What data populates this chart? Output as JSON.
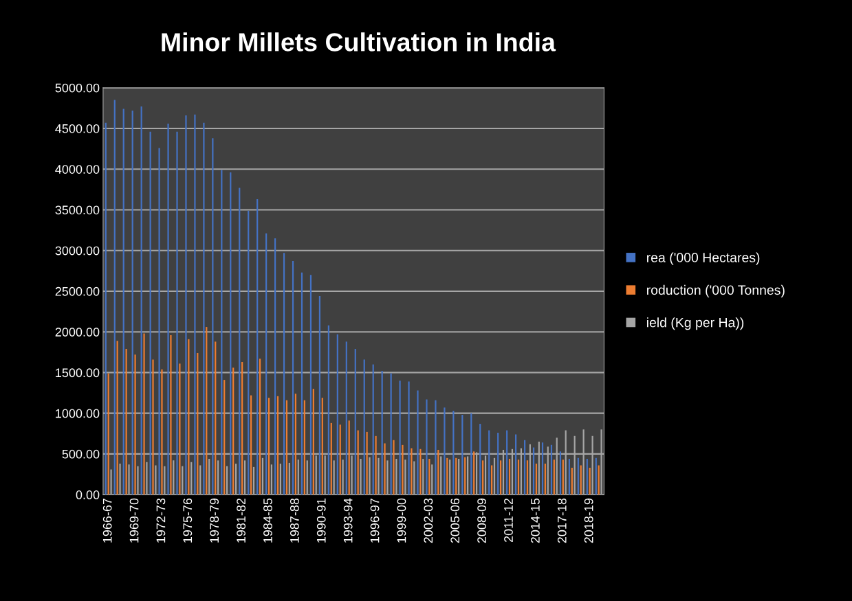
{
  "chart_data": {
    "type": "bar",
    "title": "Minor Millets Cultivation in India",
    "categories": [
      "1966-67",
      null,
      null,
      "1969-70",
      null,
      null,
      "1972-73",
      null,
      null,
      "1975-76",
      null,
      null,
      "1978-79",
      null,
      null,
      "1981-82",
      null,
      null,
      "1984-85",
      null,
      null,
      "1987-88",
      null,
      null,
      "1990-91",
      null,
      null,
      "1993-94",
      null,
      null,
      "1996-97",
      null,
      null,
      "1999-00",
      null,
      null,
      "2002-03",
      null,
      null,
      "2005-06",
      null,
      null,
      "2008-09",
      null,
      null,
      "2011-12",
      null,
      null,
      "2014-15",
      null,
      null,
      "2017-18",
      null,
      null,
      "2018-19",
      null
    ],
    "series": [
      {
        "name": "rea ('000 Hectares)",
        "color": "#4472c4",
        "values": [
          4570,
          4850,
          4740,
          4720,
          4770,
          4460,
          4260,
          4560,
          4460,
          4660,
          4670,
          4570,
          4380,
          3990,
          3960,
          3770,
          3490,
          3630,
          3210,
          3150,
          2970,
          2870,
          2730,
          2700,
          2440,
          2080,
          1970,
          1880,
          1790,
          1660,
          1600,
          1520,
          1490,
          1400,
          1390,
          1280,
          1170,
          1160,
          1070,
          1030,
          980,
          1000,
          870,
          790,
          760,
          790,
          740,
          670,
          580,
          640,
          610,
          530,
          440,
          450,
          440,
          450
        ]
      },
      {
        "name": "roduction ('000 Tonnes)",
        "color": "#ed7d31",
        "values": [
          1490,
          1890,
          1790,
          1720,
          1980,
          1660,
          1540,
          1960,
          1610,
          1910,
          1740,
          2060,
          1880,
          1410,
          1560,
          1630,
          1220,
          1670,
          1190,
          1210,
          1160,
          1240,
          1160,
          1300,
          1190,
          880,
          860,
          910,
          790,
          770,
          720,
          630,
          670,
          610,
          570,
          560,
          440,
          550,
          450,
          450,
          460,
          530,
          420,
          360,
          420,
          440,
          430,
          420,
          380,
          380,
          430,
          430,
          330,
          360,
          330,
          360
        ]
      },
      {
        "name": "ield (Kg per Ha))",
        "color": "#a5a5a5",
        "values": [
          310,
          380,
          370,
          350,
          400,
          360,
          350,
          420,
          350,
          400,
          360,
          440,
          420,
          350,
          380,
          420,
          340,
          450,
          370,
          380,
          390,
          430,
          420,
          480,
          480,
          420,
          430,
          480,
          440,
          460,
          450,
          420,
          440,
          430,
          410,
          440,
          370,
          470,
          430,
          440,
          470,
          520,
          480,
          450,
          550,
          560,
          570,
          620,
          650,
          590,
          700,
          790,
          720,
          800,
          720,
          800
        ]
      }
    ],
    "ylim": [
      0,
      5000
    ],
    "yticks": [
      {
        "value": 0,
        "label": "0.00"
      },
      {
        "value": 500,
        "label": "500.00"
      },
      {
        "value": 1000,
        "label": "1000.00"
      },
      {
        "value": 1500,
        "label": "1500.00"
      },
      {
        "value": 2000,
        "label": "2000.00"
      },
      {
        "value": 2500,
        "label": "2500.00"
      },
      {
        "value": 3000,
        "label": "3000.00"
      },
      {
        "value": 3500,
        "label": "3500.00"
      },
      {
        "value": 4000,
        "label": "4000.00"
      },
      {
        "value": 4500,
        "label": "4500.00"
      },
      {
        "value": 5000,
        "label": "5000.00"
      }
    ],
    "grid": "y",
    "legend": "right"
  }
}
